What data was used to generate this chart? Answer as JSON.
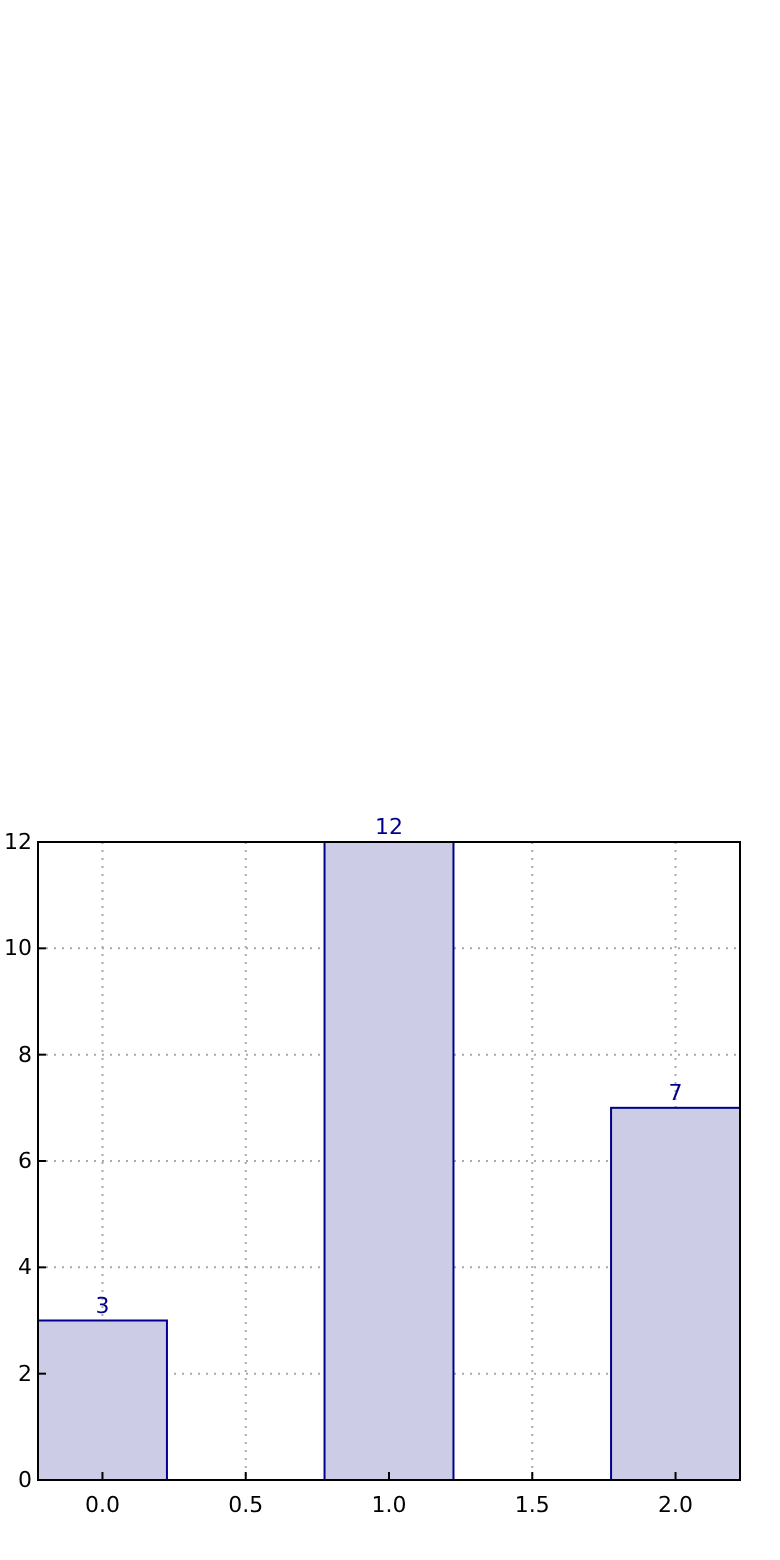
{
  "chart_data": {
    "type": "bar",
    "x": [
      0,
      1,
      2
    ],
    "values": [
      3,
      12,
      7
    ],
    "color": "#ccccE6",
    "xlim": [
      -0.225,
      2.225
    ],
    "xticks": [
      {
        "value": 0,
        "label": "0.0"
      },
      {
        "value": 0.5,
        "label": "0.5"
      },
      {
        "value": 1,
        "label": "1.0"
      },
      {
        "value": 1.5,
        "label": "1.5"
      },
      {
        "value": 2,
        "label": "2.0"
      }
    ],
    "ylim": [
      0,
      12
    ],
    "yticks": [
      0,
      2,
      4,
      6,
      8,
      10,
      12
    ],
    "grid": true,
    "data_labels": true
  }
}
